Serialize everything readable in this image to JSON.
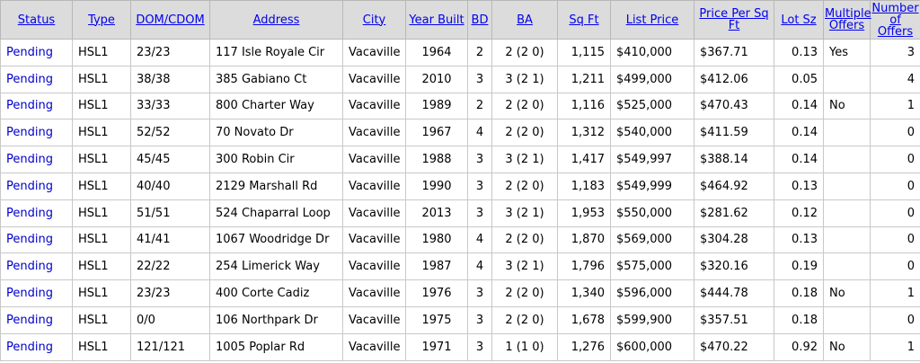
{
  "table": {
    "columns": [
      "Status",
      "Type",
      "DOM/CDOM",
      "Address",
      "City",
      "Year Built",
      "BD",
      "BA",
      "Sq Ft",
      "List Price",
      "Price Per Sq Ft",
      "Lot Sz",
      "Multiple Offers",
      "Number of Offers"
    ],
    "rows": [
      [
        "Pending",
        "HSL1",
        "23/23",
        "117 Isle Royale Cir",
        "Vacaville",
        "1964",
        "2",
        "2 (2 0)",
        "1,115",
        "$410,000",
        "$367.71",
        "0.13",
        "Yes",
        "3"
      ],
      [
        "Pending",
        "HSL1",
        "38/38",
        "385 Gabiano Ct",
        "Vacaville",
        "2010",
        "3",
        "3 (2 1)",
        "1,211",
        "$499,000",
        "$412.06",
        "0.05",
        null,
        "4"
      ],
      [
        "Pending",
        "HSL1",
        "33/33",
        "800 Charter Way",
        "Vacaville",
        "1989",
        "2",
        "2 (2 0)",
        "1,116",
        "$525,000",
        "$470.43",
        "0.14",
        "No",
        "1"
      ],
      [
        "Pending",
        "HSL1",
        "52/52",
        "70 Novato Dr",
        "Vacaville",
        "1967",
        "4",
        "2 (2 0)",
        "1,312",
        "$540,000",
        "$411.59",
        "0.14",
        null,
        "0"
      ],
      [
        "Pending",
        "HSL1",
        "45/45",
        "300 Robin Cir",
        "Vacaville",
        "1988",
        "3",
        "3 (2 1)",
        "1,417",
        "$549,997",
        "$388.14",
        "0.14",
        null,
        "0"
      ],
      [
        "Pending",
        "HSL1",
        "40/40",
        "2129 Marshall Rd",
        "Vacaville",
        "1990",
        "3",
        "2 (2 0)",
        "1,183",
        "$549,999",
        "$464.92",
        "0.13",
        null,
        "0"
      ],
      [
        "Pending",
        "HSL1",
        "51/51",
        "524 Chaparral Loop",
        "Vacaville",
        "2013",
        "3",
        "3 (2 1)",
        "1,953",
        "$550,000",
        "$281.62",
        "0.12",
        null,
        "0"
      ],
      [
        "Pending",
        "HSL1",
        "41/41",
        "1067 Woodridge Dr",
        "Vacaville",
        "1980",
        "4",
        "2 (2 0)",
        "1,870",
        "$569,000",
        "$304.28",
        "0.13",
        null,
        "0"
      ],
      [
        "Pending",
        "HSL1",
        "22/22",
        "254 Limerick Way",
        "Vacaville",
        "1987",
        "4",
        "3 (2 1)",
        "1,796",
        "$575,000",
        "$320.16",
        "0.19",
        null,
        "0"
      ],
      [
        "Pending",
        "HSL1",
        "23/23",
        "400 Corte Cadiz",
        "Vacaville",
        "1976",
        "3",
        "2 (2 0)",
        "1,340",
        "$596,000",
        "$444.78",
        "0.18",
        "No",
        "1"
      ],
      [
        "Pending",
        "HSL1",
        "0/0",
        "106 Northpark Dr",
        "Vacaville",
        "1975",
        "3",
        "2 (2 0)",
        "1,678",
        "$599,900",
        "$357.51",
        "0.18",
        null,
        "0"
      ],
      [
        "Pending",
        "HSL1",
        "121/121",
        "1005 Poplar Rd",
        "Vacaville",
        "1971",
        "3",
        "1 (1 0)",
        "1,276",
        "$600,000",
        "$470.22",
        "0.92",
        "No",
        "1"
      ]
    ]
  }
}
